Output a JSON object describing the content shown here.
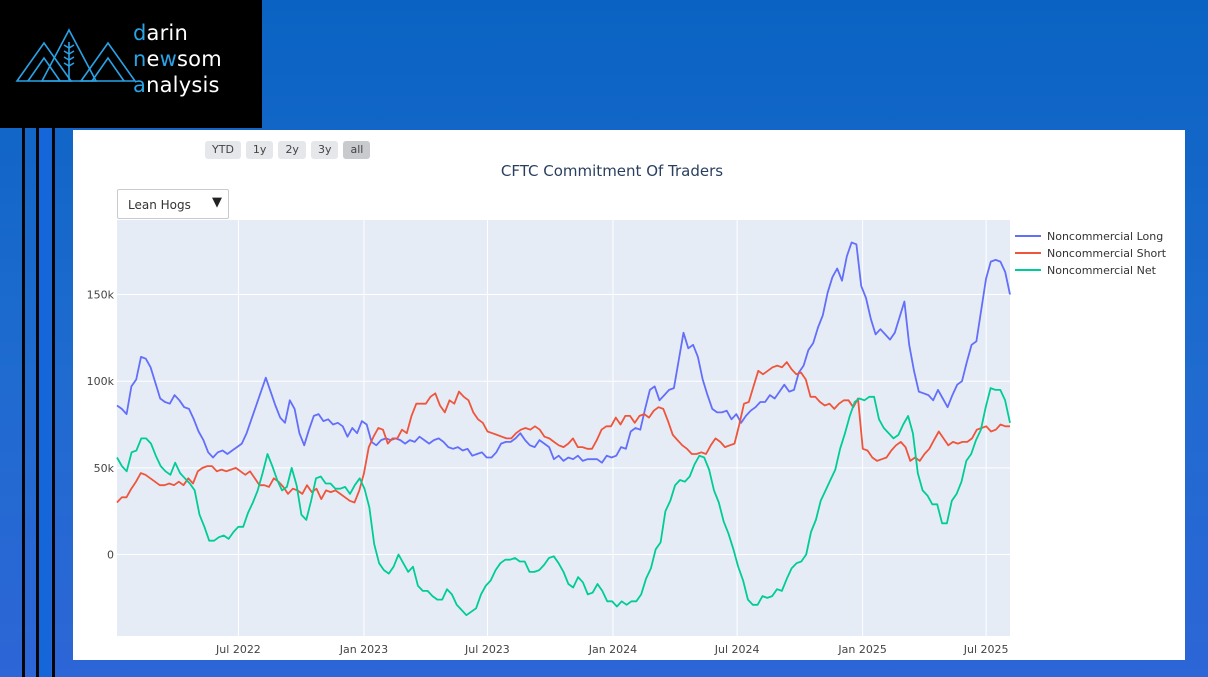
{
  "brand": {
    "logo_icon": "wheat-mountain-logo-icon",
    "accent_color": "#29a3e6",
    "lines": [
      {
        "accent": "d",
        "rest": "arin"
      },
      {
        "lead": "n",
        "accent": "e",
        "mid": "w",
        "rest": "som"
      },
      {
        "accent": "a",
        "rest": "nalysis"
      }
    ]
  },
  "range_selector": {
    "buttons": [
      "YTD",
      "1y",
      "2y",
      "3y",
      "all"
    ],
    "active": "all"
  },
  "dropdown": {
    "selected": "Lean Hogs",
    "arrow_icon": "caret-down-icon"
  },
  "chart_data": {
    "type": "line",
    "title": "CFTC Commitment Of Traders",
    "xlabel": "",
    "ylabel": "",
    "grid": true,
    "legend_position": "top-right",
    "x_start": "2022-01-04",
    "x_end": "2025-08-05",
    "x_step": "weekly",
    "x_ticks": [
      {
        "label": "Jul 2022",
        "date": "2022-07-01"
      },
      {
        "label": "Jan 2023",
        "date": "2023-01-01"
      },
      {
        "label": "Jul 2023",
        "date": "2023-07-01"
      },
      {
        "label": "Jan 2024",
        "date": "2024-01-01"
      },
      {
        "label": "Jul 2024",
        "date": "2024-07-01"
      },
      {
        "label": "Jan 2025",
        "date": "2025-01-01"
      },
      {
        "label": "Jul 2025",
        "date": "2025-07-01"
      }
    ],
    "y_ticks": [
      {
        "label": "0",
        "value": 0
      },
      {
        "label": "50k",
        "value": 50000
      },
      {
        "label": "100k",
        "value": 100000
      },
      {
        "label": "150k",
        "value": 150000
      }
    ],
    "ylim": [
      -47000,
      193000
    ],
    "series": [
      {
        "name": "Noncommercial Long",
        "color": "#636efa",
        "values": [
          86000,
          84000,
          81000,
          97000,
          101000,
          114000,
          113000,
          108000,
          99000,
          90000,
          88000,
          87000,
          92000,
          89000,
          85000,
          84000,
          78000,
          71000,
          66000,
          59000,
          56000,
          59000,
          60000,
          58000,
          60000,
          62000,
          64000,
          70000,
          78000,
          86000,
          94000,
          102000,
          94000,
          86000,
          79000,
          76000,
          89000,
          84000,
          70000,
          63000,
          72000,
          80000,
          81000,
          77000,
          78000,
          75000,
          76000,
          74000,
          68000,
          73000,
          70000,
          77000,
          75000,
          65000,
          63000,
          66000,
          67000,
          66000,
          67000,
          66000,
          64000,
          66000,
          65000,
          68000,
          66000,
          64000,
          66000,
          67000,
          65000,
          62000,
          61000,
          62000,
          60000,
          61000,
          57000,
          58000,
          59000,
          56000,
          56000,
          59000,
          64000,
          65000,
          65000,
          67000,
          70000,
          66000,
          63000,
          62000,
          66000,
          64000,
          62000,
          55000,
          57000,
          54000,
          56000,
          55000,
          57000,
          54000,
          55000,
          55000,
          55000,
          53000,
          57000,
          56000,
          57000,
          62000,
          61000,
          71000,
          73000,
          72000,
          84000,
          95000,
          97000,
          89000,
          92000,
          95000,
          96000,
          112000,
          128000,
          119000,
          121000,
          114000,
          101000,
          92000,
          84000,
          82000,
          82000,
          83000,
          78000,
          81000,
          76000,
          80000,
          83000,
          85000,
          88000,
          88000,
          92000,
          90000,
          94000,
          98000,
          94000,
          95000,
          105000,
          109000,
          118000,
          122000,
          131000,
          138000,
          151000,
          160000,
          165000,
          158000,
          172000,
          180000,
          179000,
          155000,
          148000,
          136000,
          127000,
          130000,
          127000,
          124000,
          128000,
          137000,
          146000,
          121000,
          106000,
          94000,
          93000,
          92000,
          89000,
          95000,
          90000,
          85000,
          92000,
          98000,
          100000,
          111000,
          121000,
          123000,
          141000,
          159000,
          169000,
          170000,
          169000,
          163000,
          150000
        ]
      },
      {
        "name": "Noncommercial Short",
        "color": "#ef553b",
        "values": [
          30000,
          33000,
          33000,
          38000,
          42000,
          47000,
          46000,
          44000,
          42000,
          40000,
          40000,
          41000,
          40000,
          42000,
          40000,
          44000,
          41000,
          48000,
          50000,
          51000,
          51000,
          48000,
          49000,
          48000,
          49000,
          50000,
          48000,
          46000,
          48000,
          44000,
          40000,
          40000,
          39000,
          44000,
          42000,
          39000,
          35000,
          38000,
          37000,
          35000,
          40000,
          36000,
          38000,
          32000,
          37000,
          36000,
          37000,
          35000,
          33000,
          31000,
          30000,
          37000,
          47000,
          62000,
          68000,
          73000,
          72000,
          64000,
          67000,
          67000,
          72000,
          70000,
          80000,
          87000,
          87000,
          87000,
          91000,
          93000,
          86000,
          82000,
          89000,
          87000,
          94000,
          91000,
          89000,
          82000,
          78000,
          76000,
          71000,
          70000,
          69000,
          68000,
          67000,
          67000,
          70000,
          72000,
          73000,
          72000,
          74000,
          72000,
          68000,
          67000,
          65000,
          63000,
          62000,
          64000,
          67000,
          62000,
          62000,
          61000,
          61000,
          66000,
          72000,
          74000,
          74000,
          79000,
          75000,
          80000,
          80000,
          76000,
          80000,
          81000,
          79000,
          83000,
          85000,
          84000,
          77000,
          69000,
          66000,
          63000,
          61000,
          58000,
          58000,
          59000,
          58000,
          63000,
          67000,
          65000,
          62000,
          63000,
          64000,
          75000,
          87000,
          88000,
          97000,
          106000,
          104000,
          106000,
          108000,
          109000,
          108000,
          111000,
          107000,
          104000,
          105000,
          101000,
          91000,
          91000,
          88000,
          86000,
          87000,
          84000,
          87000,
          89000,
          89000,
          85000,
          90000,
          61000,
          60000,
          56000,
          54000,
          55000,
          56000,
          60000,
          63000,
          65000,
          62000,
          54000,
          56000,
          54000,
          58000,
          61000,
          66000,
          71000,
          67000,
          63000,
          65000,
          64000,
          65000,
          65000,
          67000,
          72000,
          73000,
          74000,
          71000,
          72000,
          75000,
          74000,
          74000
        ]
      },
      {
        "name": "Noncommercial Net",
        "color": "#00cc96",
        "values": [
          56000,
          51000,
          48000,
          59000,
          60000,
          67000,
          67000,
          64000,
          57000,
          51000,
          48000,
          46000,
          53000,
          47000,
          44000,
          41000,
          37000,
          23000,
          16000,
          8000,
          8000,
          10000,
          11000,
          9000,
          13000,
          16000,
          16000,
          24000,
          30000,
          37000,
          47000,
          58000,
          51000,
          43000,
          37000,
          39000,
          50000,
          40000,
          23000,
          20000,
          31000,
          44000,
          45000,
          41000,
          41000,
          38000,
          38000,
          39000,
          35000,
          40000,
          44000,
          38000,
          27000,
          6000,
          -5000,
          -9000,
          -11000,
          -7000,
          0,
          -5000,
          -10000,
          -7000,
          -18000,
          -21000,
          -21000,
          -24000,
          -26000,
          -26000,
          -20000,
          -23000,
          -29000,
          -32000,
          -35000,
          -33000,
          -31000,
          -23000,
          -18000,
          -15000,
          -9000,
          -5000,
          -3000,
          -3000,
          -2000,
          -4000,
          -4000,
          -10000,
          -10000,
          -9000,
          -6000,
          -2000,
          -1000,
          -5000,
          -10000,
          -17000,
          -19000,
          -13000,
          -16000,
          -23000,
          -22000,
          -17000,
          -21000,
          -27000,
          -27000,
          -30000,
          -27000,
          -29000,
          -27000,
          -27000,
          -23000,
          -14000,
          -8000,
          3000,
          7000,
          25000,
          31000,
          40000,
          43000,
          42000,
          45000,
          52000,
          57000,
          56000,
          49000,
          37000,
          30000,
          19000,
          12000,
          3000,
          -7000,
          -15000,
          -26000,
          -29000,
          -29000,
          -24000,
          -25000,
          -24000,
          -20000,
          -21000,
          -14000,
          -8000,
          -5000,
          -4000,
          0,
          13000,
          20000,
          31000,
          37000,
          43000,
          49000,
          61000,
          70000,
          80000,
          88000,
          90000,
          89000,
          91000,
          91000,
          78000,
          73000,
          70000,
          67000,
          69000,
          75000,
          80000,
          70000,
          47000,
          37000,
          34000,
          29000,
          29000,
          18000,
          18000,
          31000,
          35000,
          42000,
          54000,
          58000,
          66000,
          72000,
          85000,
          96000,
          95000,
          95000,
          89000,
          76000
        ]
      }
    ]
  }
}
